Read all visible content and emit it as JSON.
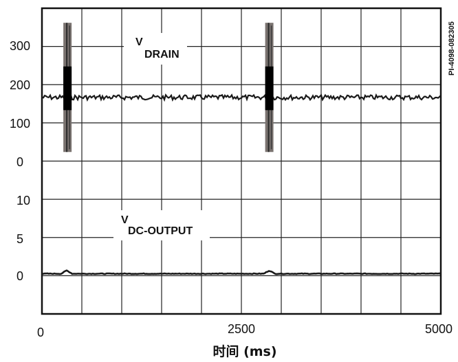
{
  "chart_data": {
    "type": "line",
    "part_number": "PI-4098-082305",
    "xlabel": "时间 (ms)",
    "x_ticks": [
      "0",
      "2500",
      "5000"
    ],
    "xlim": [
      0,
      5000
    ],
    "grid": true,
    "panels": [
      {
        "name_prefix": "V",
        "name_sub": "DRAIN",
        "y_ticks": [
          "300",
          "200",
          "100",
          "0"
        ],
        "ylim": [
          -20,
          400
        ],
        "series": [
          {
            "baseline": 155,
            "spikes": [
              {
                "x": 320,
                "min": 5,
                "max": 360
              },
              {
                "x": 2850,
                "min": 5,
                "max": 360
              }
            ]
          }
        ]
      },
      {
        "name_prefix": "V",
        "name_sub": "DC-OUTPUT",
        "y_ticks": [
          "10",
          "5",
          "0"
        ],
        "ylim": [
          -5,
          14
        ],
        "series": [
          {
            "baseline": 0,
            "bumps": [
              {
                "x": 310,
                "height": 0.4
              },
              {
                "x": 2850,
                "height": 0.4
              }
            ]
          }
        ]
      }
    ]
  }
}
